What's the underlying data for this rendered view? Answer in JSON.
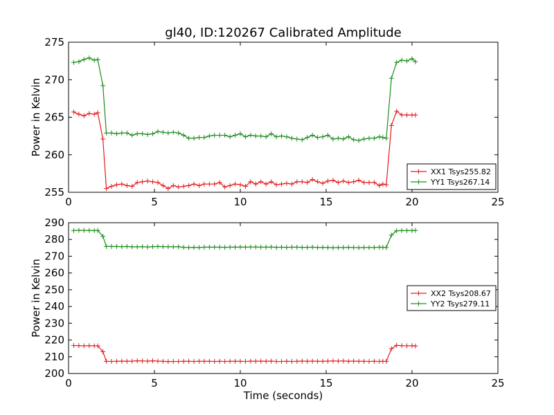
{
  "chart_data": [
    {
      "type": "line",
      "title": "gl40, ID:120267 Calibrated Amplitude",
      "xlabel": "",
      "ylabel": "Power in Kelvin",
      "xlim": [
        0,
        25
      ],
      "ylim": [
        255,
        275
      ],
      "xticks": [
        "0",
        "5",
        "10",
        "15",
        "20",
        "25"
      ],
      "yticks": [
        "255",
        "260",
        "265",
        "270",
        "275"
      ],
      "grid": false,
      "legend": "lower-right",
      "x": [
        0.3,
        0.6,
        0.9,
        1.2,
        1.5,
        1.7,
        2.0,
        2.2,
        2.5,
        2.8,
        3.1,
        3.4,
        3.7,
        4.0,
        4.3,
        4.6,
        4.9,
        5.2,
        5.5,
        5.8,
        6.1,
        6.4,
        6.7,
        7.0,
        7.3,
        7.6,
        7.9,
        8.2,
        8.5,
        8.8,
        9.1,
        9.4,
        9.7,
        10.0,
        10.3,
        10.6,
        10.9,
        11.2,
        11.5,
        11.8,
        12.1,
        12.4,
        12.7,
        13.0,
        13.3,
        13.6,
        13.9,
        14.2,
        14.5,
        14.8,
        15.1,
        15.4,
        15.7,
        16.0,
        16.3,
        16.6,
        16.9,
        17.2,
        17.5,
        17.8,
        18.1,
        18.3,
        18.5,
        18.8,
        19.1,
        19.4,
        19.7,
        20.0,
        20.2
      ],
      "series": [
        {
          "name": "XX1 Tsys255.82",
          "color": "#e31a1c",
          "values": [
            265.7,
            265.4,
            265.2,
            265.5,
            265.4,
            265.6,
            262.1,
            255.5,
            255.8,
            256.0,
            256.1,
            255.9,
            255.8,
            256.3,
            256.4,
            256.5,
            256.4,
            256.3,
            255.9,
            255.5,
            255.9,
            255.7,
            255.8,
            255.9,
            256.1,
            255.9,
            256.1,
            256.1,
            256.1,
            256.3,
            255.7,
            255.9,
            256.1,
            256.0,
            255.8,
            256.4,
            256.1,
            256.4,
            256.1,
            256.4,
            256.0,
            256.1,
            256.2,
            256.1,
            256.4,
            256.4,
            256.3,
            256.7,
            256.4,
            256.2,
            256.5,
            256.6,
            256.3,
            256.5,
            256.3,
            256.4,
            256.6,
            256.3,
            256.3,
            256.3,
            255.9,
            256.1,
            256.0,
            263.9,
            265.8,
            265.3,
            265.3,
            265.3,
            265.3
          ],
          "note_x_start": "series shares top-level x"
        },
        {
          "name": "YY1 Tsys267.14",
          "color": "#1a8a1a",
          "values": [
            272.3,
            272.4,
            272.7,
            272.9,
            272.6,
            272.7,
            269.2,
            262.9,
            262.9,
            262.8,
            262.9,
            262.9,
            262.6,
            262.8,
            262.8,
            262.7,
            262.8,
            263.1,
            263.0,
            262.9,
            263.0,
            262.9,
            262.6,
            262.2,
            262.2,
            262.3,
            262.3,
            262.5,
            262.6,
            262.6,
            262.6,
            262.4,
            262.6,
            262.8,
            262.4,
            262.6,
            262.5,
            262.5,
            262.4,
            262.8,
            262.4,
            262.5,
            262.4,
            262.2,
            262.1,
            262.0,
            262.3,
            262.6,
            262.3,
            262.4,
            262.6,
            262.1,
            262.2,
            262.1,
            262.4,
            262.0,
            261.9,
            262.1,
            262.2,
            262.2,
            262.4,
            262.3,
            262.2,
            270.2,
            272.3,
            272.6,
            272.5,
            272.8,
            272.4
          ]
        }
      ]
    },
    {
      "type": "line",
      "title": "",
      "xlabel": "Time (seconds)",
      "ylabel": "Power in Kelvin",
      "xlim": [
        0,
        25
      ],
      "ylim": [
        200,
        290
      ],
      "xticks": [
        "0",
        "5",
        "10",
        "15",
        "20",
        "25"
      ],
      "yticks": [
        "200",
        "210",
        "220",
        "230",
        "240",
        "250",
        "260",
        "270",
        "280",
        "290"
      ],
      "grid": false,
      "legend": "center-right",
      "x": [
        0.3,
        0.6,
        0.9,
        1.2,
        1.5,
        1.7,
        2.0,
        2.2,
        2.5,
        2.8,
        3.1,
        3.4,
        3.7,
        4.0,
        4.3,
        4.6,
        4.9,
        5.2,
        5.5,
        5.8,
        6.1,
        6.4,
        6.7,
        7.0,
        7.3,
        7.6,
        7.9,
        8.2,
        8.5,
        8.8,
        9.1,
        9.4,
        9.7,
        10.0,
        10.3,
        10.6,
        10.9,
        11.2,
        11.5,
        11.8,
        12.1,
        12.4,
        12.7,
        13.0,
        13.3,
        13.6,
        13.9,
        14.2,
        14.5,
        14.8,
        15.1,
        15.4,
        15.7,
        16.0,
        16.3,
        16.6,
        16.9,
        17.2,
        17.5,
        17.8,
        18.1,
        18.3,
        18.5,
        18.8,
        19.1,
        19.4,
        19.7,
        20.0,
        20.2
      ],
      "series": [
        {
          "name": "XX2 Tsys208.67",
          "color": "#e31a1c",
          "values": [
            216.7,
            216.6,
            216.5,
            216.6,
            216.5,
            216.5,
            213.0,
            207.3,
            207.2,
            207.3,
            207.4,
            207.3,
            207.4,
            207.6,
            207.5,
            207.4,
            207.6,
            207.4,
            207.3,
            207.1,
            207.2,
            207.2,
            207.3,
            207.3,
            207.2,
            207.3,
            207.3,
            207.3,
            207.2,
            207.3,
            207.2,
            207.3,
            207.3,
            207.3,
            207.2,
            207.4,
            207.3,
            207.4,
            207.3,
            207.4,
            207.2,
            207.2,
            207.3,
            207.2,
            207.3,
            207.4,
            207.3,
            207.4,
            207.3,
            207.3,
            207.4,
            207.5,
            207.4,
            207.5,
            207.3,
            207.4,
            207.3,
            207.3,
            207.2,
            207.3,
            207.2,
            207.3,
            207.2,
            214.8,
            216.8,
            216.6,
            216.5,
            216.6,
            216.4
          ]
        },
        {
          "name": "YY2 Tsys279.11",
          "color": "#1a8a1a",
          "values": [
            285.3,
            285.5,
            285.4,
            285.4,
            285.3,
            285.4,
            281.9,
            275.8,
            275.8,
            275.8,
            275.7,
            275.8,
            275.6,
            275.6,
            275.7,
            275.5,
            275.7,
            275.8,
            275.7,
            275.7,
            275.6,
            275.7,
            275.3,
            275.2,
            275.3,
            275.2,
            275.4,
            275.4,
            275.4,
            275.4,
            275.3,
            275.4,
            275.4,
            275.5,
            275.4,
            275.5,
            275.5,
            275.4,
            275.4,
            275.5,
            275.3,
            275.4,
            275.3,
            275.4,
            275.4,
            275.3,
            275.3,
            275.4,
            275.2,
            275.3,
            275.2,
            275.1,
            275.2,
            275.2,
            275.3,
            275.2,
            275.1,
            275.2,
            275.2,
            275.2,
            275.4,
            275.3,
            275.2,
            282.6,
            285.2,
            285.3,
            285.3,
            285.3,
            285.4
          ]
        }
      ]
    }
  ]
}
